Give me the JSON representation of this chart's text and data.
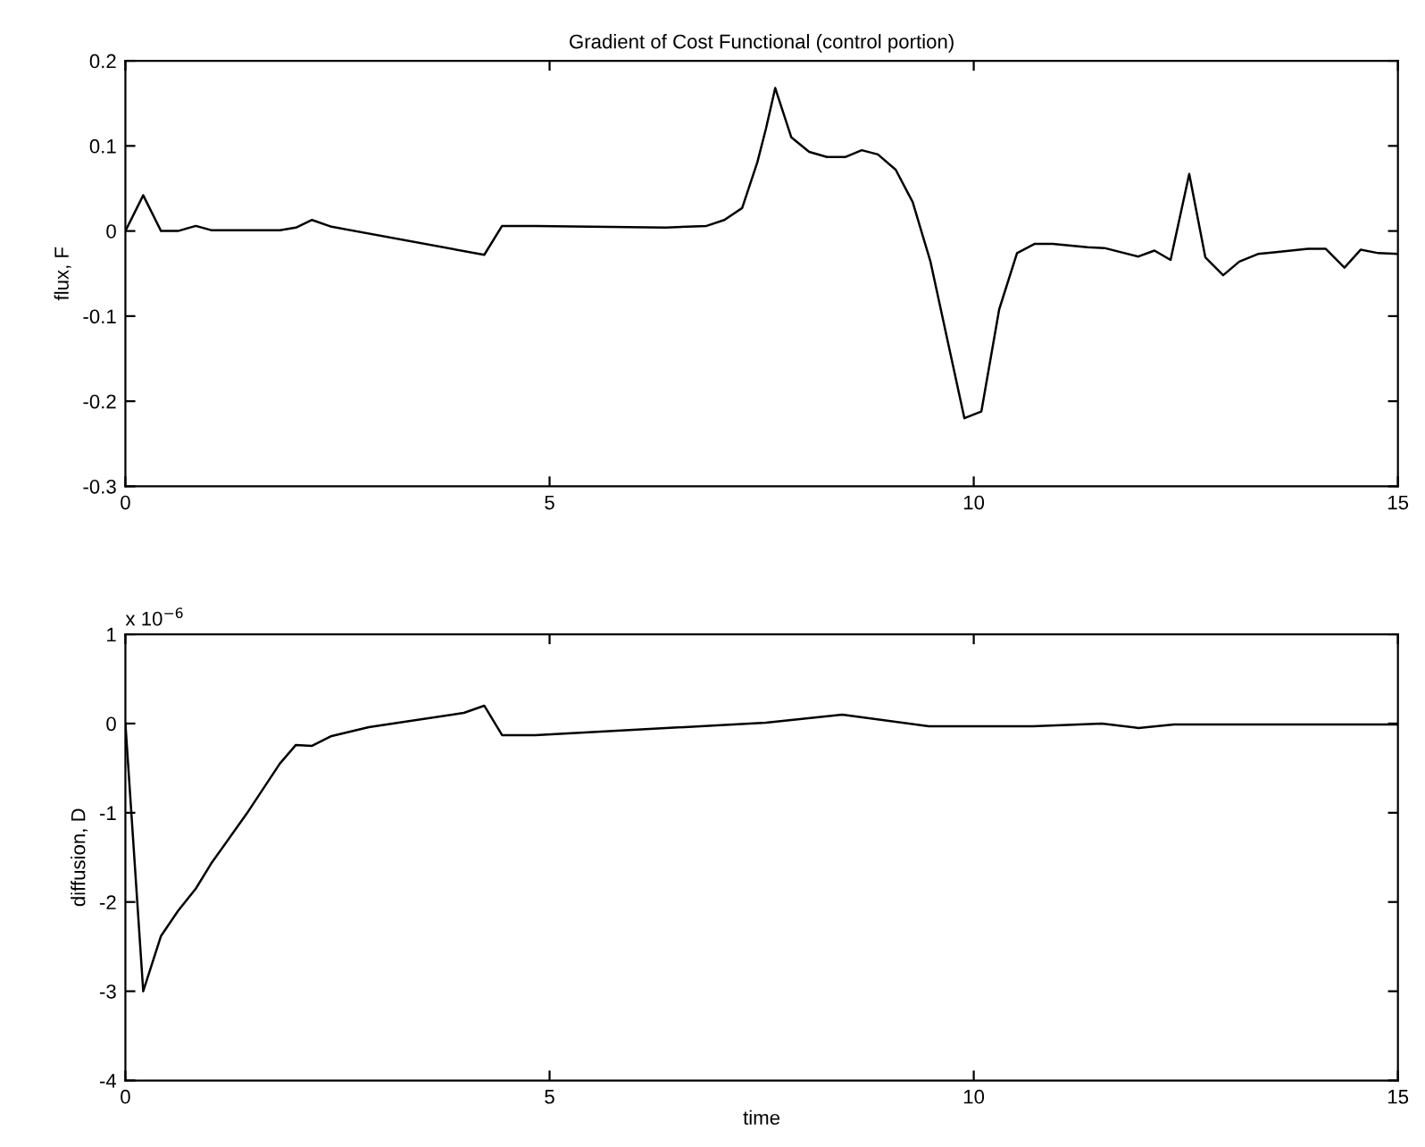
{
  "chart_data": [
    {
      "type": "line",
      "title": "Gradient of Cost Functional (control portion)",
      "ylabel": "flux, F",
      "series": [
        {
          "color": "#000000",
          "x": [
            0,
            0.21,
            0.42,
            0.62,
            0.83,
            1.01,
            1.82,
            2.01,
            2.2,
            2.43,
            4.23,
            4.44,
            4.83,
            6.37,
            6.85,
            7.06,
            7.27,
            7.45,
            7.55,
            7.66,
            7.85,
            8.06,
            8.27,
            8.49,
            8.68,
            8.87,
            9.08,
            9.28,
            9.49,
            9.89,
            10.09,
            10.3,
            10.51,
            10.72,
            10.93,
            11.34,
            11.54,
            11.94,
            12.13,
            12.32,
            12.54,
            12.73,
            12.94,
            13.13,
            13.35,
            13.54,
            13.94,
            14.15,
            14.37,
            14.56,
            14.77,
            15
          ],
          "values": [
            0,
            0.042,
            0,
            0,
            0.006,
            0.001,
            0.001,
            0.004,
            0.013,
            0.005,
            -0.028,
            0.006,
            0.006,
            0.004,
            0.006,
            0.013,
            0.027,
            0.081,
            0.12,
            0.168,
            0.11,
            0.093,
            0.087,
            0.087,
            0.095,
            0.09,
            0.072,
            0.034,
            -0.036,
            -0.22,
            -0.212,
            -0.092,
            -0.026,
            -0.015,
            -0.015,
            -0.019,
            -0.02,
            -0.03,
            -0.023,
            -0.034,
            0.067,
            -0.031,
            -0.052,
            -0.036,
            -0.027,
            -0.025,
            -0.021,
            -0.021,
            -0.043,
            -0.022,
            -0.026,
            -0.027
          ]
        }
      ],
      "xlim": [
        0,
        15
      ],
      "xticks": [
        0,
        5,
        10,
        15
      ],
      "ylim": [
        -0.3,
        0.2
      ],
      "yticks": [
        -0.3,
        -0.2,
        -0.1,
        0,
        0.1,
        0.2
      ]
    },
    {
      "type": "line",
      "xlabel": "time",
      "ylabel": "diffusion, D",
      "annotations": [
        "x 10$^{−6}$"
      ],
      "series": [
        {
          "color": "#000000",
          "x": [
            0,
            0.21,
            0.42,
            0.62,
            0.83,
            1.01,
            1.43,
            1.82,
            2.01,
            2.2,
            2.43,
            2.87,
            3.29,
            3.99,
            4.23,
            4.44,
            4.83,
            7.55,
            8.45,
            9.47,
            10.7,
            11.51,
            11.94,
            12.36,
            15
          ],
          "values": [
            0,
            -3.0,
            -2.38,
            -2.1,
            -1.85,
            -1.57,
            -1.01,
            -0.45,
            -0.24,
            -0.25,
            -0.14,
            -0.04,
            0.02,
            0.12,
            0.2,
            -0.13,
            -0.13,
            0.01,
            0.1,
            -0.03,
            -0.03,
            0,
            -0.05,
            -0.01,
            -0.01
          ]
        }
      ],
      "xlim": [
        0,
        15
      ],
      "xticks": [
        0,
        5,
        10,
        15
      ],
      "ylim": [
        -4,
        1
      ],
      "yticks": [
        -4,
        -3,
        -2,
        -1,
        0,
        1
      ]
    }
  ]
}
